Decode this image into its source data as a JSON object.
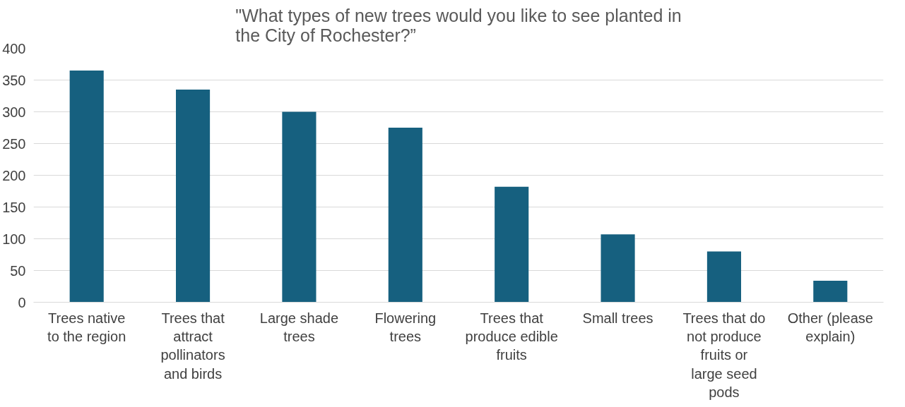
{
  "chart_data": {
    "type": "bar",
    "title": "\"What types of new trees would you like to see planted in the City of Rochester?”",
    "categories": [
      "Trees native to the region",
      "Trees that attract pollinators and birds",
      "Large shade trees",
      "Flowering trees",
      "Trees that produce edible fruits",
      "Small trees",
      "Trees that do not produce fruits or large seed pods",
      "Other (please explain)"
    ],
    "values": [
      365,
      335,
      300,
      275,
      182,
      107,
      80,
      34
    ],
    "color": "#16607f",
    "ylim": [
      0,
      400
    ],
    "yticks": [
      0,
      50,
      100,
      150,
      200,
      250,
      300,
      350,
      400
    ],
    "grid": "y"
  }
}
